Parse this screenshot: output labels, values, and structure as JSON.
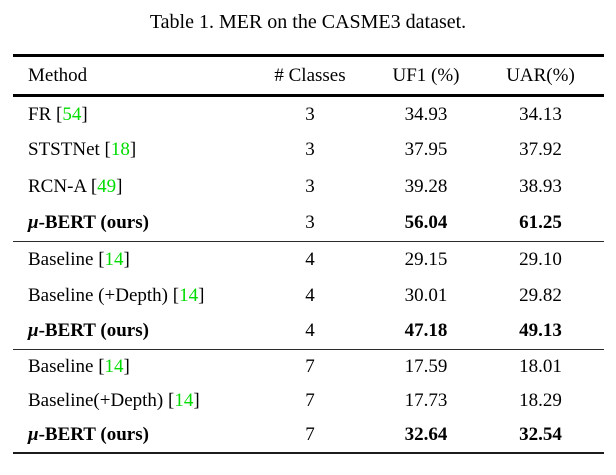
{
  "title": "Table 1. MER on the CASME3 dataset.",
  "colors": {
    "citation": "#00dc00",
    "rule": "#000000"
  },
  "table": {
    "headers": [
      "Method",
      "# Classes",
      "UF1 (%)",
      "UAR(%)"
    ],
    "sections": [
      {
        "rows": [
          {
            "mu": null,
            "name": "FR",
            "cite": "54",
            "classes": "3",
            "uf1": "34.93",
            "uar": "34.13",
            "bold": false
          },
          {
            "mu": null,
            "name": "STSTNet",
            "cite": "18",
            "classes": "3",
            "uf1": "37.95",
            "uar": "37.92",
            "bold": false
          },
          {
            "mu": null,
            "name": "RCN-A",
            "cite": "49",
            "classes": "3",
            "uf1": "39.28",
            "uar": "38.93",
            "bold": false
          },
          {
            "mu": "μ",
            "name": "-BERT (ours)",
            "cite": null,
            "classes": "3",
            "uf1": "56.04",
            "uar": "61.25",
            "bold": true
          }
        ]
      },
      {
        "rows": [
          {
            "mu": null,
            "name": "Baseline",
            "cite": "14",
            "classes": "4",
            "uf1": "29.15",
            "uar": "29.10",
            "bold": false
          },
          {
            "mu": null,
            "name": "Baseline (+Depth)",
            "cite": "14",
            "classes": "4",
            "uf1": "30.01",
            "uar": "29.82",
            "bold": false
          },
          {
            "mu": "μ",
            "name": "-BERT (ours)",
            "cite": null,
            "classes": "4",
            "uf1": "47.18",
            "uar": "49.13",
            "bold": true
          }
        ]
      },
      {
        "rows": [
          {
            "mu": null,
            "name": "Baseline",
            "cite": "14",
            "classes": "7",
            "uf1": "17.59",
            "uar": "18.01",
            "bold": false
          },
          {
            "mu": null,
            "name": "Baseline(+Depth)",
            "cite": "14",
            "classes": "7",
            "uf1": "17.73",
            "uar": "18.29",
            "bold": false
          },
          {
            "mu": "μ",
            "name": "-BERT (ours)",
            "cite": null,
            "classes": "7",
            "uf1": "32.64",
            "uar": "32.54",
            "bold": true
          }
        ]
      }
    ]
  }
}
